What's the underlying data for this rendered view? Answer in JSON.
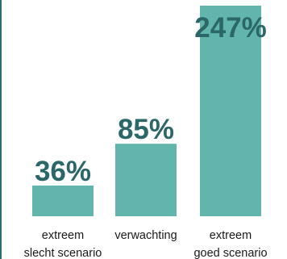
{
  "chart_data": {
    "type": "bar",
    "categories": [
      [
        "extreem",
        "slecht scenario"
      ],
      [
        "verwachting"
      ],
      [
        "extreem",
        "goed scenario"
      ]
    ],
    "values": [
      36,
      85,
      247
    ],
    "value_labels": [
      "36%",
      "85%",
      "247%"
    ],
    "unit": "%",
    "grid": false,
    "legend": "none"
  },
  "colors": {
    "bar": "#62b5ad",
    "value_label": "#2b6769",
    "category_label": "#1a1a1a",
    "border": "#2f6e70"
  }
}
